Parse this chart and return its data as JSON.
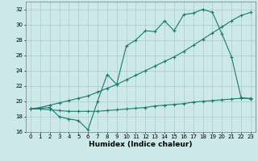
{
  "xlabel": "Humidex (Indice chaleur)",
  "bg_color": "#cce8e8",
  "line_color": "#1a7a6e",
  "grid_color": "#aacccc",
  "xlim": [
    -0.5,
    23.5
  ],
  "ylim": [
    16,
    33
  ],
  "yticks": [
    16,
    18,
    20,
    22,
    24,
    26,
    28,
    30,
    32
  ],
  "xticks": [
    0,
    1,
    2,
    3,
    4,
    5,
    6,
    7,
    8,
    9,
    10,
    11,
    12,
    13,
    14,
    15,
    16,
    17,
    18,
    19,
    20,
    21,
    22,
    23
  ],
  "line1_x": [
    0,
    1,
    2,
    3,
    4,
    5,
    6,
    7,
    8,
    9,
    10,
    11,
    12,
    13,
    14,
    15,
    16,
    17,
    18,
    19,
    20,
    21,
    22,
    23
  ],
  "line1_y": [
    19.0,
    19.2,
    19.5,
    19.8,
    20.1,
    20.4,
    20.7,
    21.2,
    21.7,
    22.2,
    22.8,
    23.4,
    24.0,
    24.6,
    25.2,
    25.8,
    26.5,
    27.3,
    28.1,
    28.9,
    29.7,
    30.5,
    31.2,
    31.6
  ],
  "line2_x": [
    0,
    2,
    3,
    4,
    5,
    6,
    7,
    8,
    9,
    10,
    11,
    12,
    13,
    14,
    15,
    16,
    17,
    18,
    19,
    20,
    21,
    22,
    23
  ],
  "line2_y": [
    19.0,
    19.2,
    18.0,
    17.7,
    17.5,
    16.3,
    20.0,
    23.5,
    22.2,
    27.2,
    28.0,
    29.2,
    29.1,
    30.5,
    29.2,
    31.3,
    31.5,
    32.0,
    31.6,
    28.8,
    25.8,
    20.5,
    20.3
  ],
  "line3_x": [
    0,
    1,
    2,
    3,
    4,
    5,
    6,
    7,
    8,
    9,
    10,
    11,
    12,
    13,
    14,
    15,
    16,
    17,
    18,
    19,
    20,
    21,
    22,
    23
  ],
  "line3_y": [
    19.0,
    19.0,
    18.9,
    18.8,
    18.7,
    18.7,
    18.7,
    18.7,
    18.8,
    18.9,
    19.0,
    19.1,
    19.2,
    19.4,
    19.5,
    19.6,
    19.7,
    19.9,
    20.0,
    20.1,
    20.2,
    20.3,
    20.4,
    20.4
  ],
  "marker": "+",
  "markersize": 3.5,
  "linewidth": 0.8,
  "tick_fontsize": 5.0,
  "xlabel_fontsize": 6.5
}
